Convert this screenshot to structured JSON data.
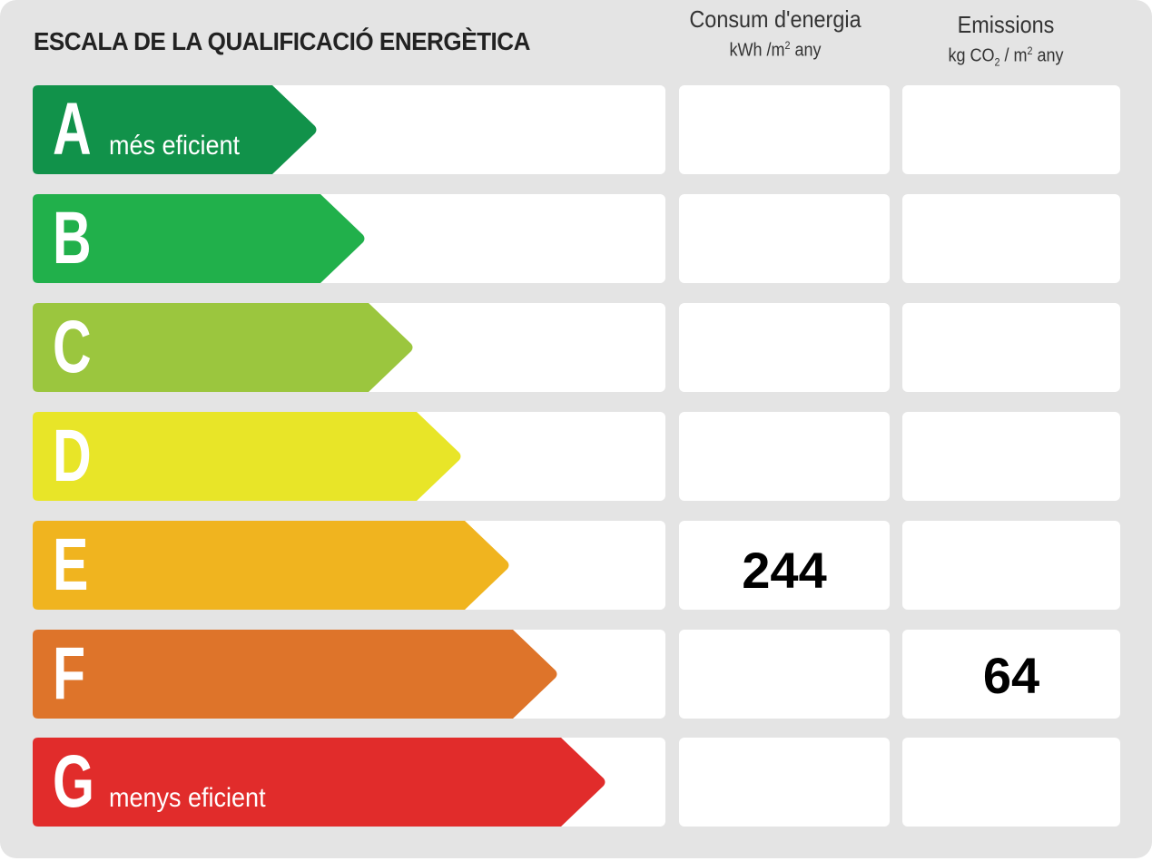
{
  "title": "ESCALA DE LA QUALIFICACIÓ ENERGÈTICA",
  "columns": {
    "consumption": {
      "title": "Consum d'energia",
      "unit_pre": "kWh /m",
      "unit_sup": "2",
      "unit_post": " any"
    },
    "emissions": {
      "title": "Emissions",
      "unit_pre": "kg CO",
      "unit_sub": "2",
      "unit_mid": " / m",
      "unit_sup": "2",
      "unit_post": " any"
    }
  },
  "ratings": [
    {
      "letter": "A",
      "sub": "més eficient",
      "color": "#11924a",
      "consumption": "",
      "emissions": ""
    },
    {
      "letter": "B",
      "sub": "",
      "color": "#21b04b",
      "consumption": "",
      "emissions": ""
    },
    {
      "letter": "C",
      "sub": "",
      "color": "#9bc63e",
      "consumption": "",
      "emissions": ""
    },
    {
      "letter": "D",
      "sub": "",
      "color": "#e8e528",
      "consumption": "",
      "emissions": ""
    },
    {
      "letter": "E",
      "sub": "",
      "color": "#f0b41f",
      "consumption": "244",
      "emissions": ""
    },
    {
      "letter": "F",
      "sub": "",
      "color": "#de742a",
      "consumption": "",
      "emissions": "64"
    },
    {
      "letter": "G",
      "sub": "menys eficient",
      "color": "#e12c2b",
      "consumption": "",
      "emissions": ""
    }
  ]
}
